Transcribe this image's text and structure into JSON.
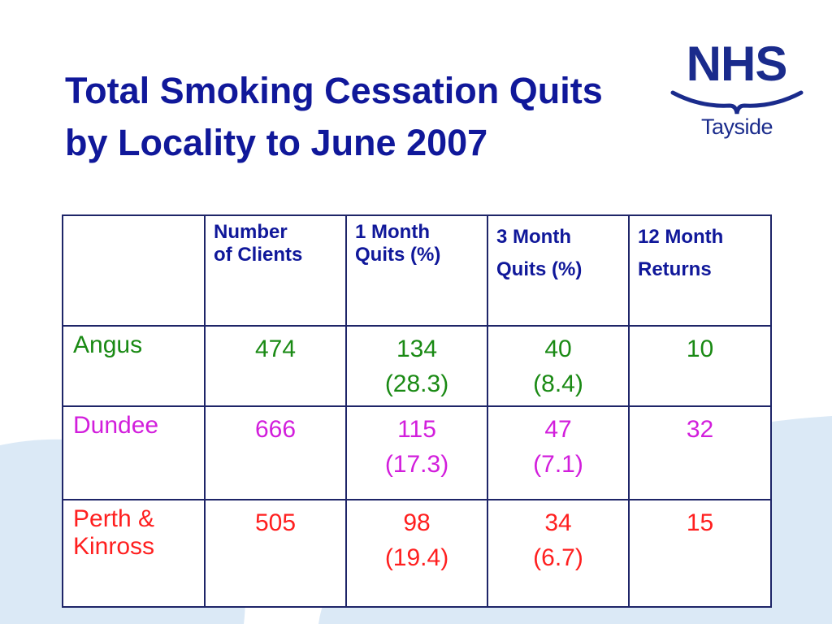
{
  "slide": {
    "title": "Total Smoking Cessation Quits by Locality to June 2007"
  },
  "logo": {
    "name": "NHS",
    "region": "Tayside"
  },
  "table": {
    "headers": [
      "",
      [
        "Number",
        "of Clients"
      ],
      [
        "1 Month",
        "Quits (%)"
      ],
      [
        "3 Month",
        "Quits (%)"
      ],
      [
        "12 Month",
        "Returns"
      ]
    ],
    "rows": [
      {
        "locality": "Angus",
        "clients": "474",
        "month1": {
          "quits": "134",
          "pct": "(28.3)"
        },
        "month3": {
          "quits": "40",
          "pct": "(8.4)"
        },
        "returns12": "10",
        "color": "#1a8a14"
      },
      {
        "locality": "Dundee",
        "clients": "666",
        "month1": {
          "quits": "115",
          "pct": "(17.3)"
        },
        "month3": {
          "quits": "47",
          "pct": "(7.1)"
        },
        "returns12": "32",
        "color": "#d21edc"
      },
      {
        "locality": "Perth & Kinross",
        "clients": "505",
        "month1": {
          "quits": "98",
          "pct": "(19.4)"
        },
        "month3": {
          "quits": "34",
          "pct": "(6.7)"
        },
        "returns12": "15",
        "color": "#ff1f1f"
      }
    ]
  },
  "colors": {
    "title": "#10189a",
    "border": "#1e2568",
    "background_wave": "#dbe9f6"
  }
}
